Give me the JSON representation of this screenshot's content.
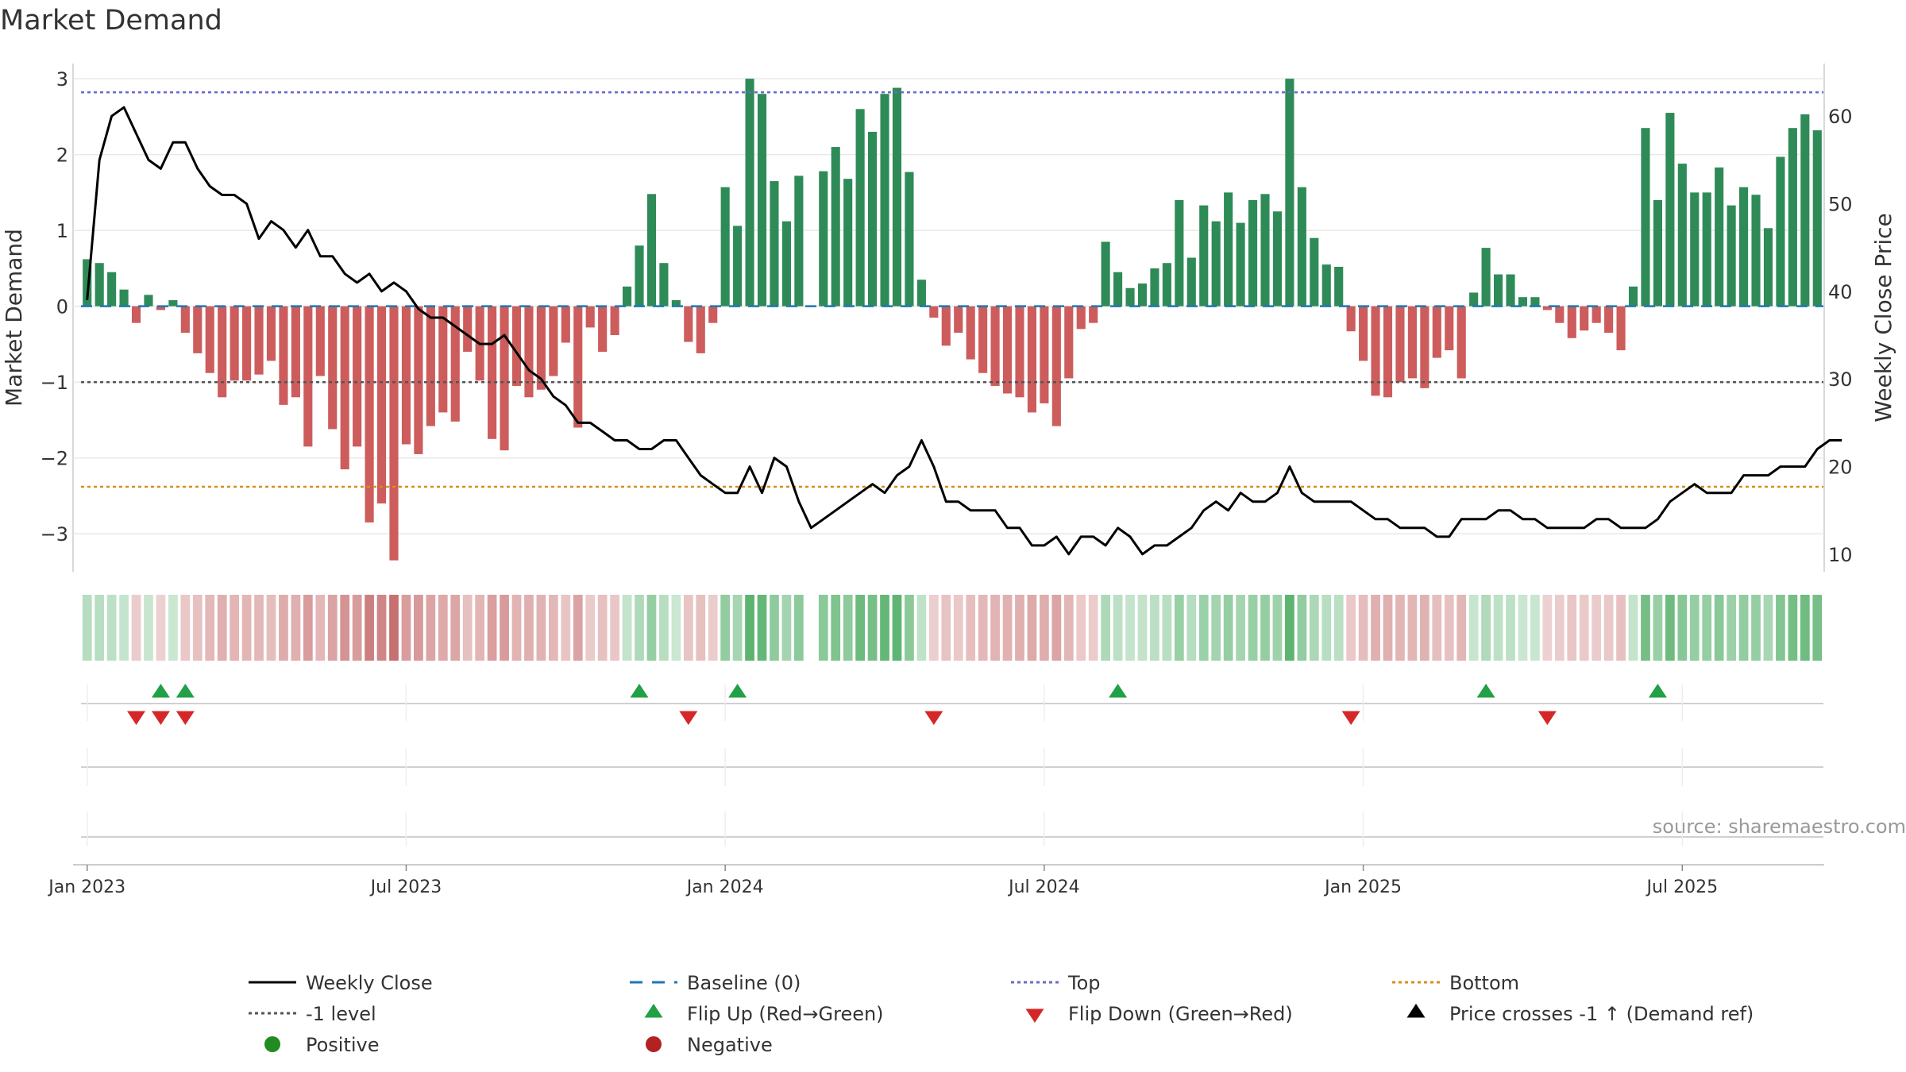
{
  "chart_data": {
    "type": "bar",
    "title": "Market Demand",
    "ylabel_left": "Market Demand",
    "ylabel_right": "Weekly Close Price",
    "source": "source: sharemaestro.com",
    "left_ylim": [
      -3.5,
      3.2
    ],
    "right_ylim": [
      8,
      66
    ],
    "left_ticks": [
      {
        "v": 3,
        "label": "3"
      },
      {
        "v": 2,
        "label": "2"
      },
      {
        "v": 1,
        "label": "1"
      },
      {
        "v": 0,
        "label": "0"
      },
      {
        "v": -1,
        "label": "−1"
      },
      {
        "v": -2,
        "label": "−2"
      },
      {
        "v": -3,
        "label": "−3"
      }
    ],
    "right_ticks": [
      {
        "v": 60,
        "label": "60"
      },
      {
        "v": 50,
        "label": "50"
      },
      {
        "v": 40,
        "label": "40"
      },
      {
        "v": 30,
        "label": "30"
      },
      {
        "v": 20,
        "label": "20"
      },
      {
        "v": 10,
        "label": "10"
      }
    ],
    "x_ticks": [
      {
        "week": 1,
        "label": "Jan 2023"
      },
      {
        "week": 27,
        "label": "Jul 2023"
      },
      {
        "week": 53,
        "label": "Jan 2024"
      },
      {
        "week": 79,
        "label": "Jul 2024"
      },
      {
        "week": 105,
        "label": "Jan 2025"
      },
      {
        "week": 131,
        "label": "Jul 2025"
      }
    ],
    "reference_lines": {
      "top": 2.82,
      "bottom": -2.38,
      "minus_one": -1,
      "baseline": 0
    },
    "demand": [
      0.62,
      0.57,
      0.45,
      0.22,
      -0.22,
      0.15,
      -0.05,
      0.08,
      -0.35,
      -0.62,
      -0.88,
      -1.2,
      -0.98,
      -0.98,
      -0.9,
      -0.72,
      -1.3,
      -1.2,
      -1.85,
      -0.92,
      -1.62,
      -2.15,
      -1.85,
      -2.85,
      -2.6,
      -3.35,
      -1.82,
      -1.95,
      -1.58,
      -1.4,
      -1.52,
      -0.6,
      -0.98,
      -1.75,
      -1.9,
      -1.05,
      -1.2,
      -1.1,
      -0.92,
      -0.48,
      -1.6,
      -0.28,
      -0.6,
      -0.38,
      0.26,
      0.8,
      1.48,
      0.57,
      0.08,
      -0.47,
      -0.62,
      -0.22,
      1.57,
      1.06,
      3.0,
      2.8,
      1.65,
      1.12,
      1.72,
      0.0,
      1.78,
      2.1,
      1.68,
      2.6,
      2.3,
      2.8,
      2.88,
      1.77,
      0.35,
      -0.15,
      -0.52,
      -0.35,
      -0.7,
      -0.88,
      -1.05,
      -1.15,
      -1.2,
      -1.4,
      -1.28,
      -1.58,
      -0.95,
      -0.3,
      -0.22,
      0.85,
      0.45,
      0.24,
      0.3,
      0.5,
      0.57,
      1.4,
      0.64,
      1.33,
      1.12,
      1.5,
      1.1,
      1.4,
      1.48,
      1.25,
      3.0,
      1.57,
      0.9,
      0.55,
      0.52,
      -0.33,
      -0.72,
      -1.18,
      -1.2,
      -1.0,
      -0.95,
      -1.08,
      -0.68,
      -0.58,
      -0.95,
      0.18,
      0.77,
      0.42,
      0.42,
      0.12,
      0.12,
      -0.05,
      -0.22,
      -0.42,
      -0.32,
      -0.22,
      -0.35,
      -0.58,
      0.26,
      2.35,
      1.4,
      2.55,
      1.88,
      1.5,
      1.5,
      1.83,
      1.33,
      1.57,
      1.47,
      1.03,
      1.97,
      2.35,
      2.53,
      2.32
    ],
    "weekly_close": [
      39,
      55,
      60,
      61,
      58,
      55,
      54,
      57,
      57,
      54,
      52,
      51,
      51,
      50,
      46,
      48,
      47,
      45,
      47,
      44,
      44,
      42,
      41,
      42,
      40,
      41,
      40,
      38,
      37,
      37,
      36,
      35,
      34,
      34,
      35,
      33,
      31,
      30,
      28,
      27,
      25,
      25,
      24,
      23,
      23,
      22,
      22,
      23,
      23,
      21,
      19,
      18,
      17,
      17,
      20,
      17,
      21,
      20,
      16,
      13,
      14,
      15,
      16,
      17,
      18,
      17,
      19,
      20,
      23,
      20,
      16,
      16,
      15,
      15,
      15,
      13,
      13,
      11,
      11,
      12,
      10,
      12,
      12,
      11,
      13,
      12,
      10,
      11,
      11,
      12,
      13,
      15,
      16,
      15,
      17,
      16,
      16,
      17,
      20,
      17,
      16,
      16,
      16,
      16,
      15,
      14,
      14,
      13,
      13,
      13,
      12,
      12,
      14,
      14,
      14,
      15,
      15,
      14,
      14,
      13,
      13,
      13,
      13,
      14,
      14,
      13,
      13,
      13,
      14,
      16,
      17,
      18,
      17,
      17,
      17,
      19,
      19,
      19,
      20,
      20,
      20,
      22,
      23,
      23
    ],
    "strip_colors": {
      "pos_strong": "#5db370",
      "pos_light": "#cde8d4",
      "neg_strong": "#c77070",
      "neg_light": "#eed2d2",
      "gap": "#ffffff"
    },
    "flip_up_weeks": [
      7,
      9,
      46,
      54,
      85,
      115,
      129
    ],
    "flip_down_weeks": [
      5,
      7,
      9,
      50,
      70,
      104,
      120
    ],
    "legend": [
      {
        "label": "Weekly Close",
        "marker": "line-black"
      },
      {
        "label": "Baseline (0)",
        "marker": "dash-blue"
      },
      {
        "label": "Top",
        "marker": "dot-purple"
      },
      {
        "label": "Bottom",
        "marker": "dot-orange"
      },
      {
        "label": "-1 level",
        "marker": "dot-gray"
      },
      {
        "label": "Flip Up (Red→Green)",
        "marker": "tri-up-green"
      },
      {
        "label": "Flip Down (Green→Red)",
        "marker": "tri-down-red"
      },
      {
        "label": "Price crosses -1 ↑ (Demand ref)",
        "marker": "tri-up-black"
      },
      {
        "label": "Positive",
        "marker": "circle-green"
      },
      {
        "label": "Negative",
        "marker": "circle-red"
      }
    ],
    "colors": {
      "positive": "#2e8b57",
      "negative": "#cd5c5c",
      "price": "#000000",
      "top": "#6a6acd",
      "bottom": "#d4901a",
      "minus_one": "#555555",
      "baseline": "#1f77b4",
      "flip_up": "#22a046",
      "flip_down": "#d62728",
      "grid": "#e8e8e8",
      "axis": "#cccccc"
    }
  }
}
